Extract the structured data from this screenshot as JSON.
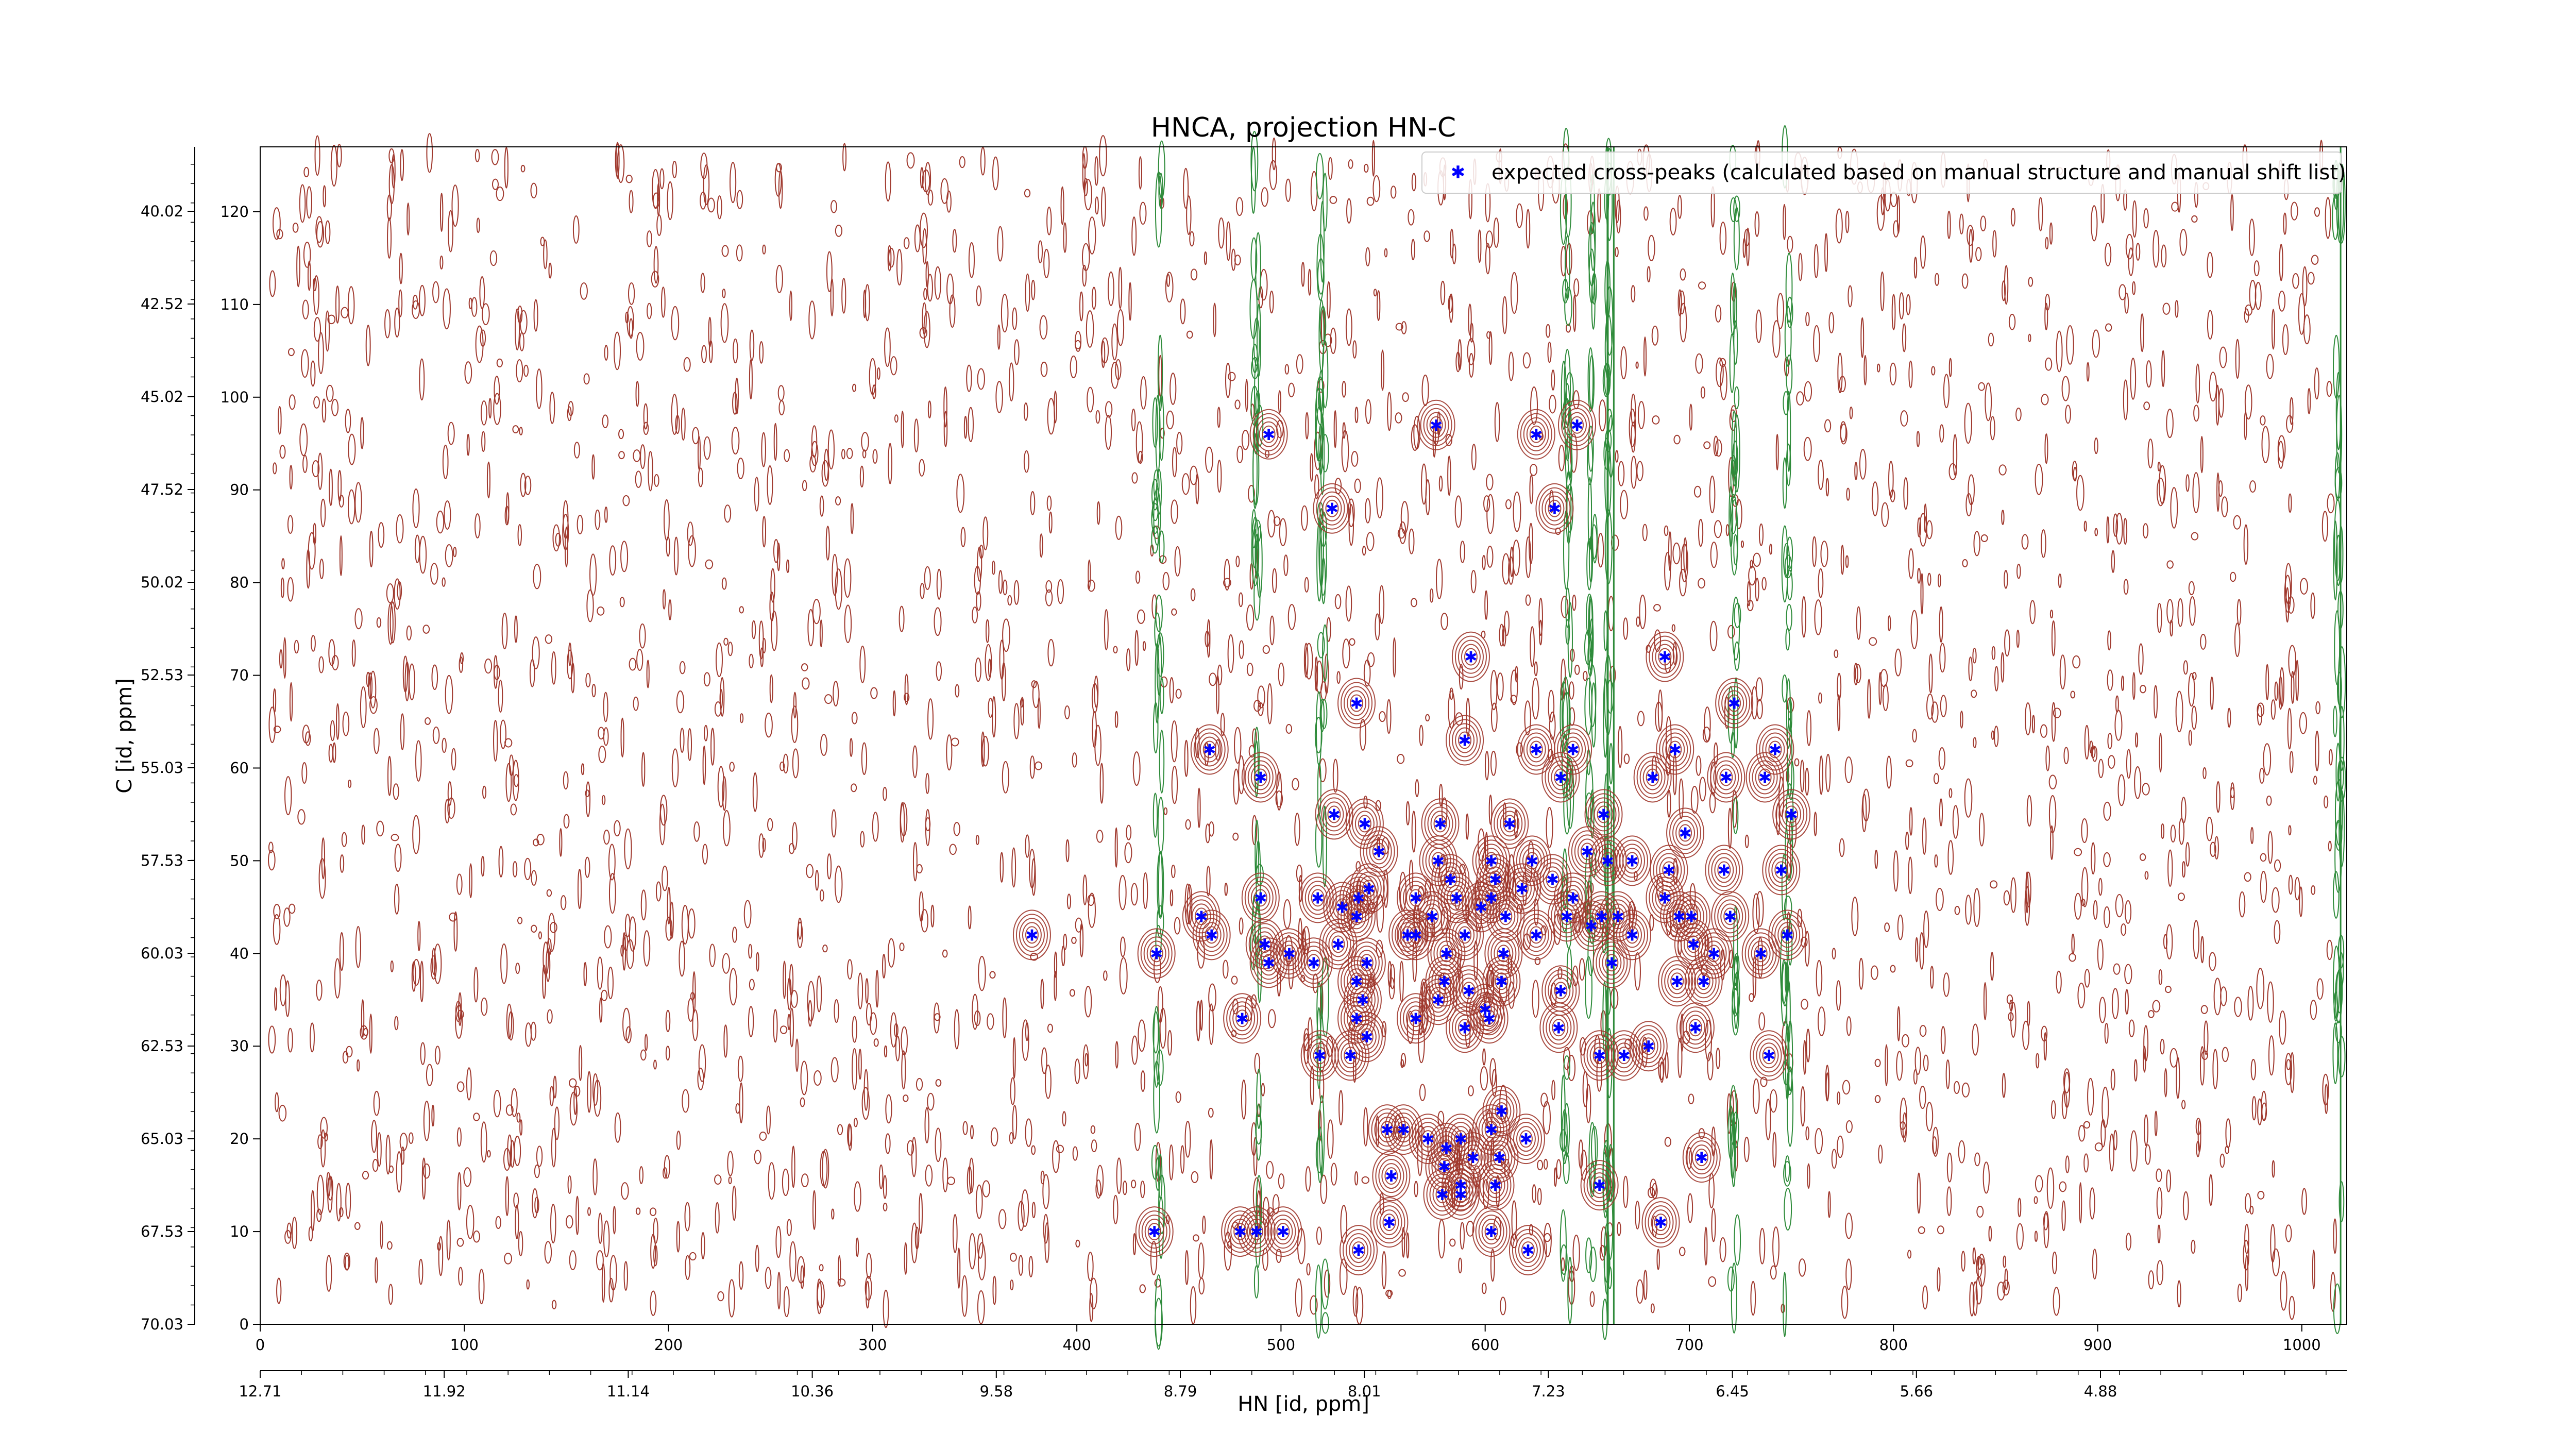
{
  "chart_data": {
    "type": "scatter",
    "title": "HNCA, projection HN-C",
    "xlabel": "HN [id, ppm]",
    "ylabel": "C [id, ppm]",
    "xlim": [
      0,
      1022
    ],
    "ylim": [
      0,
      127
    ],
    "x_ticks": [
      0,
      100,
      200,
      300,
      400,
      500,
      600,
      700,
      800,
      900,
      1000
    ],
    "y_ticks": [
      0,
      10,
      20,
      30,
      40,
      50,
      60,
      70,
      80,
      90,
      100,
      110,
      120
    ],
    "x_ppm_ticks": [
      "12.71",
      "11.92",
      "11.14",
      "10.36",
      "9.58",
      "8.79",
      "8.01",
      "7.23",
      "6.45",
      "5.66",
      "4.88"
    ],
    "y_ppm_ticks": [
      "70.03",
      "67.53",
      "65.03",
      "62.53",
      "60.03",
      "57.53",
      "55.03",
      "52.53",
      "50.02",
      "47.52",
      "45.02",
      "42.52",
      "40.02"
    ],
    "legend": {
      "label": "expected cross-peaks (calculated based on manual structure and manual shift list)",
      "placement": "top-right"
    },
    "grid": false,
    "colors": {
      "peaks": "#0000ff",
      "positive_contours": "#a0392e",
      "negative_contours": "#2e8b3a"
    },
    "series": [
      {
        "name": "expected cross-peaks (calculated based on manual structure and manual shift list)",
        "points": [
          [
            494,
            96
          ],
          [
            576,
            97
          ],
          [
            625,
            96
          ],
          [
            645,
            97
          ],
          [
            525,
            88
          ],
          [
            634,
            88
          ],
          [
            593,
            72
          ],
          [
            688,
            72
          ],
          [
            537,
            67
          ],
          [
            722,
            67
          ],
          [
            465,
            62
          ],
          [
            590,
            63
          ],
          [
            625,
            62
          ],
          [
            643,
            62
          ],
          [
            693,
            62
          ],
          [
            742,
            62
          ],
          [
            490,
            59
          ],
          [
            637,
            59
          ],
          [
            682,
            59
          ],
          [
            718,
            59
          ],
          [
            737,
            59
          ],
          [
            750,
            55
          ],
          [
            526,
            55
          ],
          [
            541,
            54
          ],
          [
            578,
            54
          ],
          [
            612,
            54
          ],
          [
            658,
            55
          ],
          [
            698,
            53
          ],
          [
            548,
            51
          ],
          [
            577,
            50
          ],
          [
            603,
            50
          ],
          [
            623,
            50
          ],
          [
            650,
            51
          ],
          [
            660,
            50
          ],
          [
            672,
            50
          ],
          [
            690,
            49
          ],
          [
            717,
            49
          ],
          [
            745,
            49
          ],
          [
            583,
            48
          ],
          [
            605,
            48
          ],
          [
            633,
            48
          ],
          [
            538,
            46
          ],
          [
            543,
            47
          ],
          [
            566,
            46
          ],
          [
            586,
            46
          ],
          [
            603,
            46
          ],
          [
            618,
            47
          ],
          [
            643,
            46
          ],
          [
            688,
            46
          ],
          [
            490,
            46
          ],
          [
            518,
            46
          ],
          [
            530,
            45
          ],
          [
            720,
            44
          ],
          [
            598,
            45
          ],
          [
            461,
            44
          ],
          [
            537,
            44
          ],
          [
            574,
            44
          ],
          [
            610,
            44
          ],
          [
            640,
            44
          ],
          [
            657,
            44
          ],
          [
            665,
            44
          ],
          [
            695,
            44
          ],
          [
            701,
            44
          ],
          [
            378,
            42
          ],
          [
            466,
            42
          ],
          [
            492,
            41
          ],
          [
            562,
            42
          ],
          [
            566,
            42
          ],
          [
            590,
            42
          ],
          [
            625,
            42
          ],
          [
            652,
            43
          ],
          [
            672,
            42
          ],
          [
            702,
            41
          ],
          [
            712,
            40
          ],
          [
            748,
            42
          ],
          [
            439,
            40
          ],
          [
            504,
            40
          ],
          [
            528,
            41
          ],
          [
            542,
            39
          ],
          [
            581,
            40
          ],
          [
            609,
            40
          ],
          [
            662,
            39
          ],
          [
            735,
            40
          ],
          [
            494,
            39
          ],
          [
            516,
            39
          ],
          [
            537,
            37
          ],
          [
            580,
            37
          ],
          [
            592,
            36
          ],
          [
            608,
            37
          ],
          [
            637,
            36
          ],
          [
            694,
            37
          ],
          [
            707,
            37
          ],
          [
            540,
            35
          ],
          [
            577,
            35
          ],
          [
            600,
            34
          ],
          [
            481,
            33
          ],
          [
            537,
            33
          ],
          [
            566,
            33
          ],
          [
            590,
            32
          ],
          [
            602,
            33
          ],
          [
            636,
            32
          ],
          [
            703,
            32
          ],
          [
            542,
            31
          ],
          [
            519,
            29
          ],
          [
            534,
            29
          ],
          [
            656,
            29
          ],
          [
            668,
            29
          ],
          [
            680,
            30
          ],
          [
            739,
            29
          ],
          [
            608,
            23
          ],
          [
            560,
            21
          ],
          [
            552,
            21
          ],
          [
            572,
            20
          ],
          [
            588,
            20
          ],
          [
            603,
            21
          ],
          [
            620,
            20
          ],
          [
            581,
            19
          ],
          [
            594,
            18
          ],
          [
            607,
            18
          ],
          [
            706,
            18
          ],
          [
            580,
            17
          ],
          [
            554,
            16
          ],
          [
            588,
            15
          ],
          [
            605,
            15
          ],
          [
            656,
            15
          ],
          [
            579,
            14
          ],
          [
            588,
            14
          ],
          [
            438,
            10
          ],
          [
            480,
            10
          ],
          [
            488,
            10
          ],
          [
            501,
            10
          ],
          [
            553,
            11
          ],
          [
            603,
            10
          ],
          [
            686,
            11
          ],
          [
            538,
            8
          ],
          [
            621,
            8
          ]
        ]
      }
    ]
  }
}
